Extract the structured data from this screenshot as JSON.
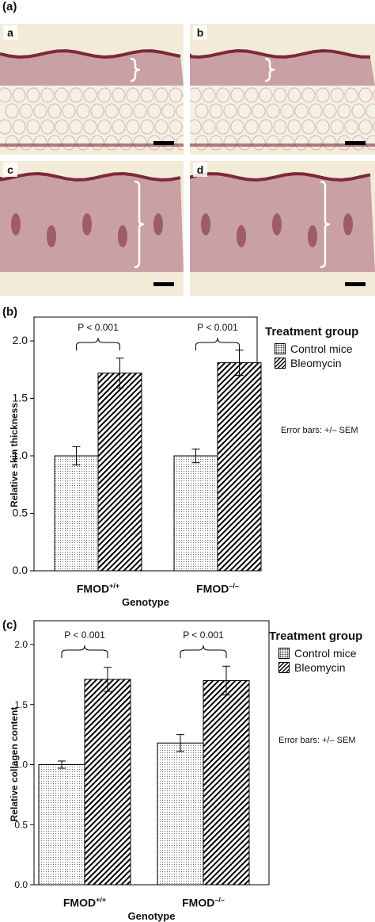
{
  "figure": {
    "panel_a_label": "(a)",
    "panel_b_label": "(b)",
    "panel_c_label": "(c)",
    "micrographs": [
      {
        "label": "a",
        "tissue": "thin-dermis-with-fat"
      },
      {
        "label": "b",
        "tissue": "thin-dermis-with-fat"
      },
      {
        "label": "c",
        "tissue": "thick-dermis"
      },
      {
        "label": "d",
        "tissue": "thick-dermis"
      }
    ],
    "colors": {
      "tissue": "#c9a0a4",
      "epidermis": "#7a2a3a",
      "fat": "#f6efe4",
      "background": "#f3ead8"
    }
  },
  "chart_data": [
    {
      "type": "bar",
      "title": "",
      "xlabel": "Genotype",
      "ylabel": "Relative skin thickness",
      "ylim": [
        0,
        2.0
      ],
      "yticks": [
        "0.0",
        "0.5",
        "1.0",
        "1.5",
        "2.0"
      ],
      "categories": [
        "FMOD",
        "FMOD"
      ],
      "category_sup": [
        "+/+",
        "–/–"
      ],
      "series": [
        {
          "name": "Control mice",
          "pattern": "dots",
          "values": [
            1.0,
            1.0
          ],
          "error": [
            0.08,
            0.06
          ]
        },
        {
          "name": "Bleomycin",
          "pattern": "hatch",
          "values": [
            1.72,
            1.81
          ],
          "error": [
            0.13,
            0.11
          ]
        }
      ],
      "annotations": [
        "P < 0.001",
        "P < 0.001"
      ],
      "legend_title": "Treatment group",
      "legend_position": "top-right",
      "note": "Error bars: +/– SEM"
    },
    {
      "type": "bar",
      "title": "",
      "xlabel": "Genotype",
      "ylabel": "Relative collagen content",
      "ylim": [
        0,
        2.0
      ],
      "yticks": [
        "0.0",
        "0.5",
        "1.0",
        "1.5",
        "2.0"
      ],
      "categories": [
        "FMOD",
        "FMOD"
      ],
      "category_sup": [
        "+/+",
        "–/–"
      ],
      "series": [
        {
          "name": "Control mice",
          "pattern": "dots",
          "values": [
            1.0,
            1.18
          ],
          "error": [
            0.03,
            0.07
          ]
        },
        {
          "name": "Bleomycin",
          "pattern": "hatch",
          "values": [
            1.71,
            1.7
          ],
          "error": [
            0.1,
            0.12
          ]
        }
      ],
      "annotations": [
        "P < 0.001",
        "P < 0.001"
      ],
      "legend_title": "Treatment group",
      "legend_position": "top-right",
      "note": "Error bars: +/– SEM"
    }
  ]
}
